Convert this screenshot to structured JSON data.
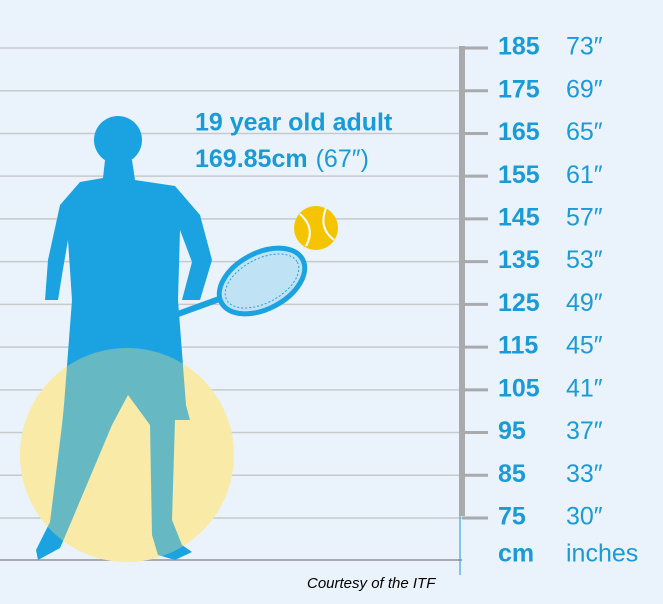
{
  "heading": {
    "line1": "19 year old adult",
    "measure": "169.85cm",
    "measure_inches": "(67″)"
  },
  "scale": {
    "rows": [
      {
        "cm": "185",
        "inches": "73″"
      },
      {
        "cm": "175",
        "inches": "69″"
      },
      {
        "cm": "165",
        "inches": "65″"
      },
      {
        "cm": "155",
        "inches": "61″"
      },
      {
        "cm": "145",
        "inches": "57″"
      },
      {
        "cm": "135",
        "inches": "53″"
      },
      {
        "cm": "125",
        "inches": "49″"
      },
      {
        "cm": "115",
        "inches": "45″"
      },
      {
        "cm": "105",
        "inches": "41″"
      },
      {
        "cm": "95",
        "inches": "37″"
      },
      {
        "cm": "85",
        "inches": "33″"
      },
      {
        "cm": "75",
        "inches": "30″"
      }
    ],
    "units": {
      "cm": "cm",
      "inches": "inches"
    }
  },
  "credit": "Courtesy of the ITF"
}
